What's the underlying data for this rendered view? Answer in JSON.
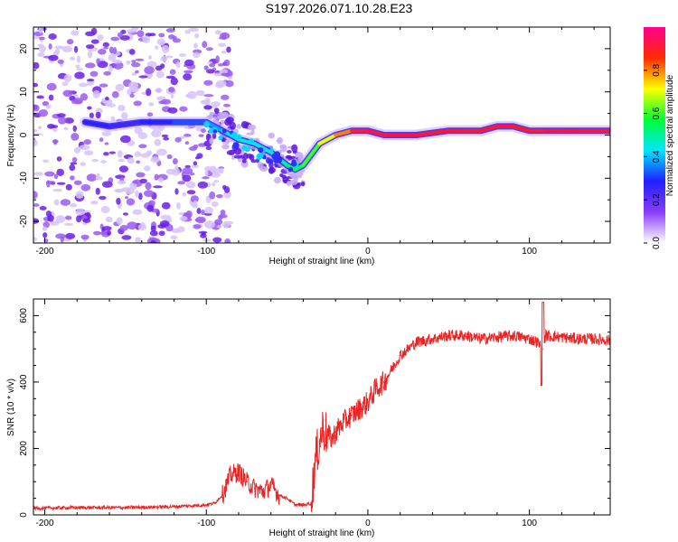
{
  "title": "S197.2026.071.10.28.E23",
  "colors": {
    "snr_line": "#ee2222",
    "axis": "#000000"
  },
  "chart_data": [
    {
      "type": "heatmap",
      "name": "spectrogram",
      "xlabel": "Height of straight line (km)",
      "ylabel": "Frequency (Hz)",
      "xlim": [
        -207,
        150
      ],
      "ylim": [
        -25,
        25
      ],
      "xticks": [
        -200,
        -100,
        0,
        100
      ],
      "yticks": [
        -20,
        -10,
        0,
        10,
        20
      ],
      "colorbar": {
        "label": "Normalized spectral amplitude",
        "range": [
          0,
          1
        ],
        "ticks": [
          0.0,
          0.2,
          0.4,
          0.6,
          0.8
        ],
        "tick_labels": [
          "0.0",
          "0.2",
          "0.4",
          "0.6",
          "0.8"
        ],
        "colormap": [
          "#ffffff",
          "#8a3cff",
          "#2020ff",
          "#00e5ff",
          "#00ff33",
          "#ffff00",
          "#ff2a00",
          "#ff0090"
        ]
      },
      "ridge": {
        "description": "dominant frequency track",
        "x": [
          -175,
          -160,
          -140,
          -120,
          -100,
          -90,
          -80,
          -70,
          -60,
          -50,
          -45,
          -40,
          -30,
          -20,
          -10,
          0,
          10,
          30,
          50,
          70,
          80,
          90,
          100,
          110,
          130,
          150
        ],
        "y": [
          3,
          2,
          3,
          3,
          3,
          1,
          -1,
          -2,
          -4,
          -7,
          -8,
          -7,
          -2,
          0,
          1,
          1,
          0,
          0,
          1,
          1,
          2,
          2,
          1,
          1,
          1,
          1
        ],
        "amplitude": [
          0.3,
          0.25,
          0.25,
          0.3,
          0.35,
          0.4,
          0.45,
          0.45,
          0.45,
          0.5,
          0.55,
          0.55,
          0.65,
          0.75,
          0.85,
          0.95,
          0.95,
          0.95,
          0.9,
          0.9,
          0.95,
          0.95,
          0.85,
          0.95,
          0.95,
          0.95
        ]
      },
      "noise_region": {
        "x_range": [
          -207,
          -100
        ],
        "y_range": [
          -25,
          25
        ],
        "amplitude": 0.15
      }
    },
    {
      "type": "line",
      "name": "snr",
      "xlabel": "Height of straight line (km)",
      "ylabel": "SNR (10 * v/v)",
      "xlim": [
        -207,
        150
      ],
      "ylim": [
        0,
        650
      ],
      "xticks": [
        -200,
        -100,
        0,
        100
      ],
      "yticks": [
        0,
        200,
        400,
        600
      ],
      "series": [
        {
          "name": "SNR",
          "x": [
            -207,
            -180,
            -150,
            -120,
            -100,
            -95,
            -90,
            -85,
            -80,
            -75,
            -70,
            -65,
            -60,
            -55,
            -50,
            -45,
            -40,
            -35,
            -33,
            -30,
            -28,
            -25,
            -22,
            -20,
            -15,
            -10,
            -5,
            0,
            5,
            10,
            15,
            20,
            25,
            30,
            40,
            50,
            60,
            70,
            80,
            90,
            100,
            105,
            108,
            110,
            120,
            130,
            140,
            150
          ],
          "y": [
            20,
            22,
            22,
            25,
            30,
            35,
            60,
            120,
            130,
            100,
            80,
            70,
            90,
            60,
            50,
            30,
            30,
            35,
            150,
            220,
            260,
            240,
            230,
            250,
            280,
            300,
            320,
            340,
            380,
            400,
            440,
            480,
            500,
            520,
            530,
            540,
            540,
            530,
            535,
            540,
            530,
            520,
            500,
            540,
            535,
            530,
            530,
            525
          ]
        }
      ]
    }
  ]
}
